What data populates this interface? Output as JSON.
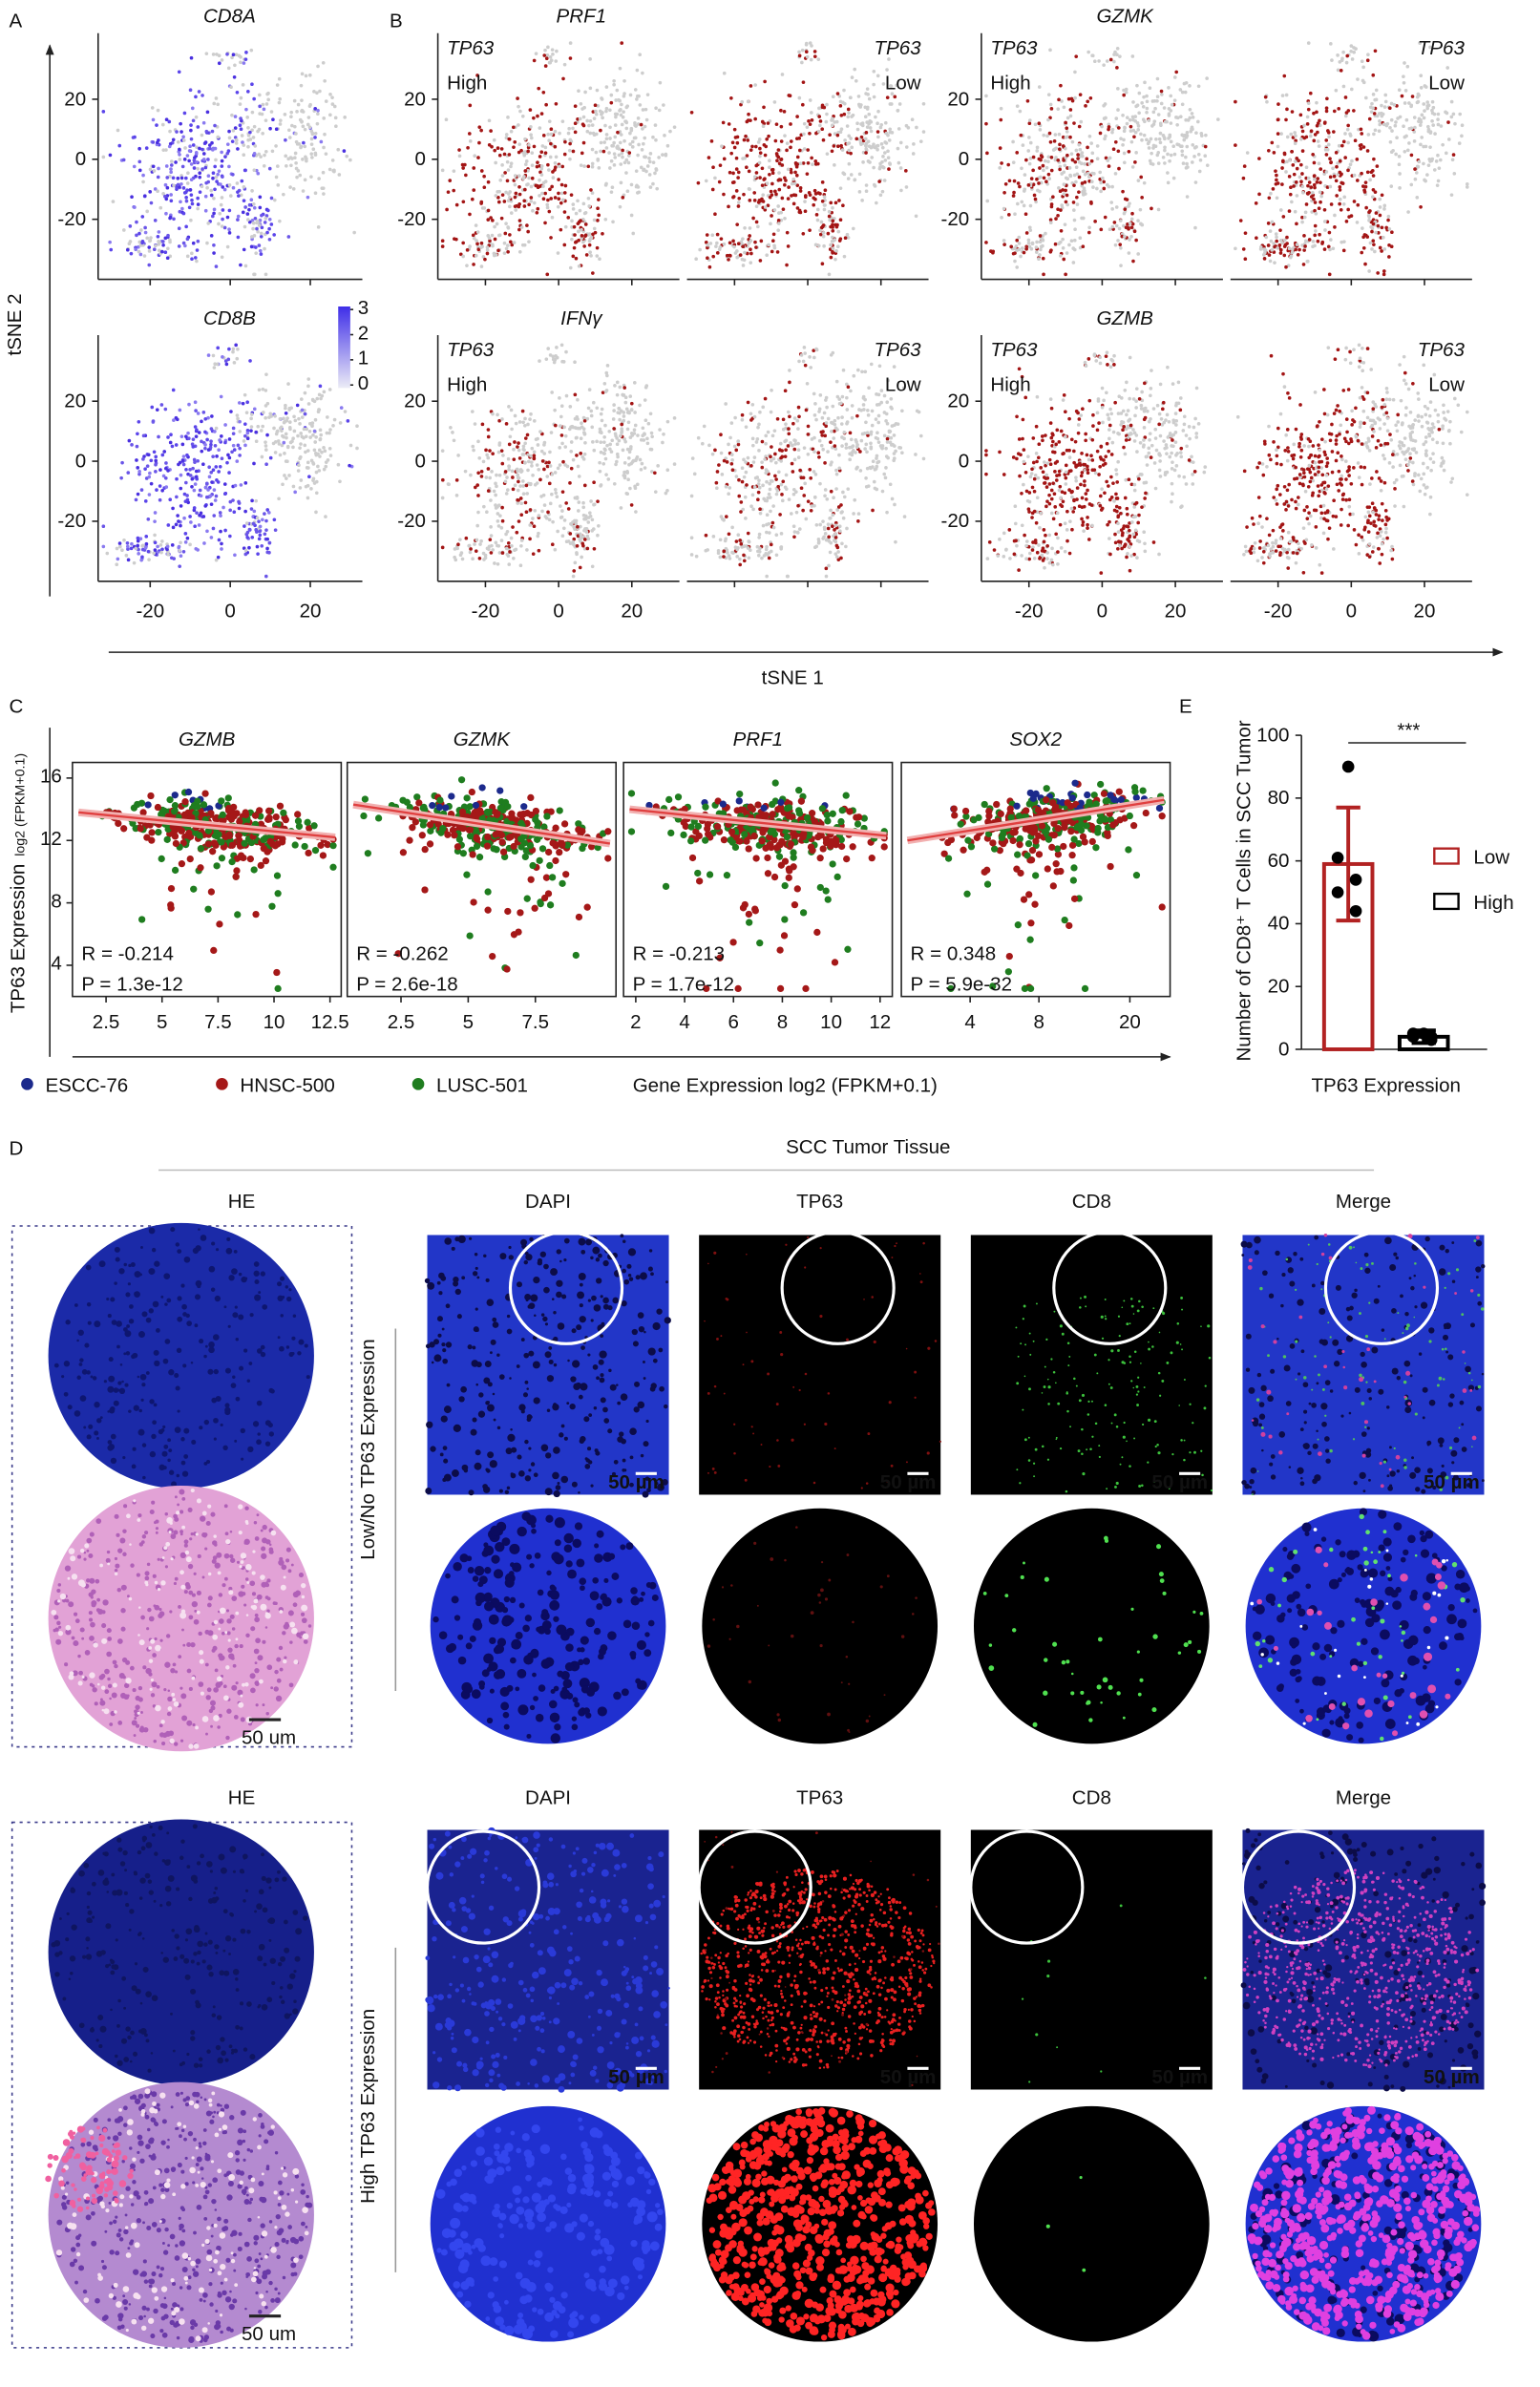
{
  "panel_a": {
    "label": "A",
    "titles": [
      "CD8A",
      "CD8B"
    ],
    "y_axis_label": "tSNE 2",
    "colorbar_ticks": [
      0,
      1,
      2,
      3
    ]
  },
  "panel_b": {
    "label": "B",
    "titles": [
      "PRF1",
      "GZMK",
      "IFNγ",
      "GZMB"
    ],
    "group_label": "TP63",
    "levels": [
      "High",
      "Low"
    ]
  },
  "tsne": {
    "x_axis_label": "tSNE 1",
    "xlim": [
      -33,
      33
    ],
    "ylim": [
      -40,
      42
    ],
    "xticks": [
      -20,
      0,
      20
    ],
    "yticks": [
      -20,
      0,
      20
    ]
  },
  "panel_c": {
    "label": "C",
    "titles": [
      "GZMB",
      "GZMK",
      "PRF1",
      "SOX2"
    ],
    "y_label": "TP63 Expression",
    "y_label_unit": "log2 (FPKM+0.1)",
    "ylim": [
      2,
      17
    ],
    "yticks": [
      4,
      8,
      12,
      16
    ],
    "xlim": [
      [
        1,
        13
      ],
      [
        0.5,
        10.5
      ],
      [
        1.5,
        12.5
      ],
      [
        2,
        30
      ]
    ],
    "xscale": [
      "linear",
      "linear",
      "linear",
      "log"
    ],
    "xticks": [
      [
        2.5,
        5,
        7.5,
        10,
        12.5
      ],
      [
        2.5,
        5,
        7.5
      ],
      [
        2,
        4,
        6,
        8,
        10,
        12
      ],
      [
        4,
        8,
        20
      ]
    ],
    "stats": [
      [
        "R = -0.214",
        "P = 1.3e-12"
      ],
      [
        "R = -0.262",
        "P = 2.6e-18"
      ],
      [
        "R = -0.213",
        "P = 1.7e-12"
      ],
      [
        "R = 0.348",
        "P = 5.9e-32"
      ]
    ],
    "legend": [
      "ESCC-76",
      "HNSC-500",
      "LUSC-501"
    ],
    "colors": [
      "#1c2a8c",
      "#a51818",
      "#1f7d1f"
    ],
    "x_label": "Gene Expression log2 (FPKM+0.1)"
  },
  "chart_data": {
    "type": "bar",
    "label": "E",
    "categories": [
      "Low",
      "High"
    ],
    "values": [
      59,
      4
    ],
    "errors": [
      18,
      2
    ],
    "points": [
      [
        90,
        61,
        54,
        50,
        44
      ],
      [
        5,
        4,
        3,
        5,
        4
      ]
    ],
    "colors": [
      "#b22222",
      "#000000"
    ],
    "ylim": [
      0,
      100
    ],
    "yticks": [
      0,
      20,
      40,
      60,
      80,
      100
    ],
    "y_label": "Number of CD8⁺ T Cells in SCC Tumor",
    "x_label": "TP63 Expression",
    "annotation": "***"
  },
  "panel_d": {
    "label": "D",
    "title": "SCC Tumor Tissue",
    "he_label": "HE",
    "channels": [
      "DAPI",
      "TP63",
      "CD8",
      "Merge"
    ],
    "rows": [
      "Low/No TP63 Expression",
      "High TP63 Expression"
    ],
    "scale_bar": "50 µm",
    "he_scale_bar": "50 um"
  }
}
